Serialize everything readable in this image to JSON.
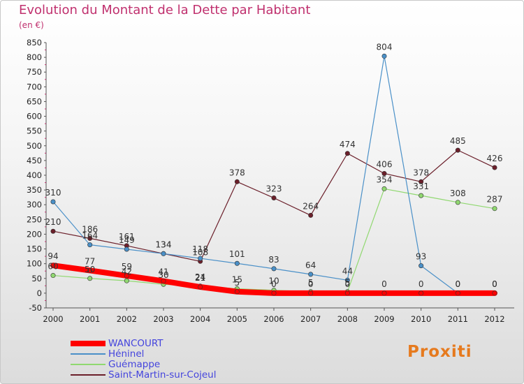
{
  "header": {
    "title": "Evolution du Montant de la Dette par Habitant",
    "subtitle": "(en €)"
  },
  "brand": {
    "name": "Proxiti"
  },
  "chart_data": {
    "type": "line",
    "title": "Evolution du Montant de la Dette par Habitant",
    "subtitle": "(en €)",
    "x": [
      2000,
      2001,
      2002,
      2003,
      2004,
      2005,
      2006,
      2007,
      2008,
      2009,
      2010,
      2011,
      2012
    ],
    "ylim": [
      -50,
      850
    ],
    "yticks": [
      -50,
      0,
      50,
      100,
      150,
      200,
      250,
      300,
      350,
      400,
      450,
      500,
      550,
      600,
      650,
      700,
      750,
      800,
      850
    ],
    "grid": false,
    "legend_position": "bottom-left",
    "series": [
      {
        "name": "WANCOURT",
        "color": "#ff0000",
        "line_width": 8,
        "values": [
          94,
          77,
          59,
          41,
          21,
          5,
          0,
          0,
          0,
          0,
          0,
          0,
          0
        ]
      },
      {
        "name": "Héninel",
        "color": "#4a90c8",
        "line_width": 1.2,
        "values": [
          310,
          164,
          149,
          134,
          118,
          101,
          83,
          64,
          44,
          804,
          93,
          0,
          0
        ]
      },
      {
        "name": "Guémappe",
        "color": "#90d870",
        "line_width": 1.2,
        "values": [
          60,
          50,
          42,
          30,
          24,
          15,
          10,
          5,
          5,
          354,
          331,
          308,
          287
        ]
      },
      {
        "name": "Saint-Martin-sur-Cojeul",
        "color": "#6b1f2a",
        "line_width": 1.2,
        "values": [
          210,
          186,
          161,
          134,
          108,
          378,
          323,
          264,
          474,
          406,
          378,
          485,
          426
        ]
      }
    ]
  }
}
